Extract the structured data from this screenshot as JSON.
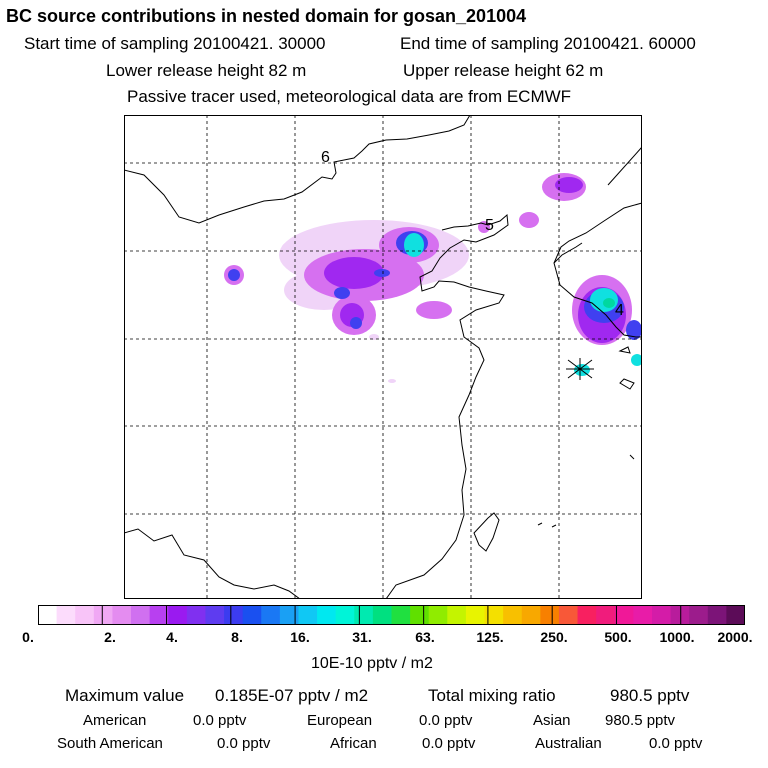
{
  "header": {
    "title": "BC  source contributions in nested domain for gosan_201004",
    "start": "Start time of sampling 20100421. 30000",
    "end": "End time of sampling 20100421. 60000",
    "lower": "Lower release height   82 m",
    "upper": "Upper release height   62 m",
    "tracer": "Passive tracer used, meteorological data are from ECMWF"
  },
  "map": {
    "labels": [
      "6",
      "5",
      "4"
    ],
    "receptor_marker": "star-marker"
  },
  "colorbar": {
    "colors": [
      "#ffffff",
      "#fcdcfc",
      "#f8c4f8",
      "#f0a8f4",
      "#e48cf0",
      "#d070f0",
      "#b840f0",
      "#9a1af0",
      "#8030f0",
      "#5e3cf0",
      "#3c3cf0",
      "#1a50f0",
      "#1a78f4",
      "#1aa0f4",
      "#10c8f4",
      "#00e8f0",
      "#00f4d8",
      "#00eab0",
      "#00e080",
      "#20e040",
      "#60e000",
      "#90ec00",
      "#c4f400",
      "#e8f400",
      "#f4e000",
      "#f8c000",
      "#f8a800",
      "#f88000",
      "#f85838",
      "#f82060",
      "#f01c7c",
      "#f01898",
      "#e81ca8",
      "#d41ca8",
      "#b81c9c",
      "#9c1c8c",
      "#7c1478",
      "#5c0c58"
    ],
    "tick_labels": [
      "0.",
      "2.",
      "4.",
      "8.",
      "16.",
      "31.",
      "63.",
      "125.",
      "250.",
      "500.",
      "1000.",
      "2000."
    ],
    "units": "10E-10 pptv / m2"
  },
  "stats": {
    "max_label": "Maximum value",
    "max_value": "0.185E-07 pptv / m2",
    "total_label": "Total mixing ratio",
    "total_value": "980.5 pptv",
    "regions": [
      {
        "name": "American",
        "value": "0.0 pptv"
      },
      {
        "name": "European",
        "value": "0.0 pptv"
      },
      {
        "name": "Asian",
        "value": "980.5 pptv"
      },
      {
        "name": "South American",
        "value": "0.0 pptv"
      },
      {
        "name": "African",
        "value": "0.0 pptv"
      },
      {
        "name": "Australian",
        "value": "0.0 pptv"
      }
    ]
  }
}
